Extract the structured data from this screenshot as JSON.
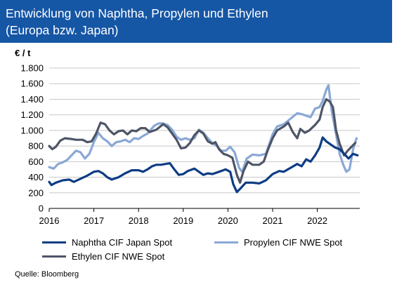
{
  "header": {
    "title_line1": "Entwicklung von Naphtha, Propylen und Ethylen",
    "title_line2": "(Europa bzw. Japan)",
    "background_color": "#1556a5"
  },
  "unit_label": "€ / t",
  "source": "Quelle: Bloomberg",
  "chart_data": {
    "type": "line",
    "title": "Entwicklung von Naphtha, Propylen und Ethylen (Europa bzw. Japan)",
    "ylabel": "€ / t",
    "xlabel": "",
    "ylim": [
      0,
      1800
    ],
    "yticks": [
      0,
      200,
      400,
      600,
      800,
      1000,
      1200,
      1400,
      1600,
      1800
    ],
    "ytick_labels": [
      "0",
      "200",
      "400",
      "600",
      "800",
      "1.000",
      "1.200",
      "1.400",
      "1.600",
      "1.800"
    ],
    "xlim": [
      2016.0,
      2022.95
    ],
    "xticks": [
      2016,
      2017,
      2018,
      2019,
      2020,
      2021,
      2022
    ],
    "xtick_labels": [
      "2016",
      "2017",
      "2018",
      "2019",
      "2020",
      "2021",
      "2022"
    ],
    "grid": "horizontal",
    "legend_position": "bottom",
    "series": [
      {
        "name": "Naphtha CIF Japan Spot",
        "color": "#0d3c84",
        "points": [
          [
            2016.0,
            340
          ],
          [
            2016.05,
            300
          ],
          [
            2016.15,
            330
          ],
          [
            2016.3,
            360
          ],
          [
            2016.45,
            370
          ],
          [
            2016.55,
            340
          ],
          [
            2016.7,
            380
          ],
          [
            2016.85,
            420
          ],
          [
            2017.0,
            470
          ],
          [
            2017.1,
            480
          ],
          [
            2017.2,
            450
          ],
          [
            2017.3,
            400
          ],
          [
            2017.4,
            370
          ],
          [
            2017.55,
            400
          ],
          [
            2017.7,
            450
          ],
          [
            2017.85,
            490
          ],
          [
            2018.0,
            490
          ],
          [
            2018.1,
            470
          ],
          [
            2018.2,
            500
          ],
          [
            2018.3,
            540
          ],
          [
            2018.4,
            560
          ],
          [
            2018.5,
            560
          ],
          [
            2018.6,
            570
          ],
          [
            2018.7,
            580
          ],
          [
            2018.8,
            500
          ],
          [
            2018.9,
            430
          ],
          [
            2019.0,
            440
          ],
          [
            2019.1,
            480
          ],
          [
            2019.25,
            510
          ],
          [
            2019.35,
            470
          ],
          [
            2019.45,
            430
          ],
          [
            2019.55,
            450
          ],
          [
            2019.65,
            440
          ],
          [
            2019.8,
            470
          ],
          [
            2019.95,
            500
          ],
          [
            2020.05,
            470
          ],
          [
            2020.12,
            310
          ],
          [
            2020.2,
            210
          ],
          [
            2020.27,
            250
          ],
          [
            2020.4,
            330
          ],
          [
            2020.55,
            330
          ],
          [
            2020.7,
            320
          ],
          [
            2020.85,
            360
          ],
          [
            2021.0,
            440
          ],
          [
            2021.15,
            480
          ],
          [
            2021.25,
            470
          ],
          [
            2021.4,
            520
          ],
          [
            2021.55,
            570
          ],
          [
            2021.65,
            540
          ],
          [
            2021.75,
            630
          ],
          [
            2021.85,
            600
          ],
          [
            2021.95,
            680
          ],
          [
            2022.05,
            780
          ],
          [
            2022.12,
            910
          ],
          [
            2022.2,
            860
          ],
          [
            2022.3,
            820
          ],
          [
            2022.4,
            780
          ],
          [
            2022.5,
            760
          ],
          [
            2022.6,
            700
          ],
          [
            2022.7,
            640
          ],
          [
            2022.8,
            700
          ],
          [
            2022.9,
            680
          ]
        ]
      },
      {
        "name": "Propylen CIF NWE Spot",
        "color": "#8aa8d6",
        "points": [
          [
            2016.0,
            530
          ],
          [
            2016.1,
            510
          ],
          [
            2016.2,
            570
          ],
          [
            2016.3,
            590
          ],
          [
            2016.4,
            620
          ],
          [
            2016.5,
            680
          ],
          [
            2016.6,
            740
          ],
          [
            2016.7,
            720
          ],
          [
            2016.8,
            640
          ],
          [
            2016.9,
            700
          ],
          [
            2017.0,
            850
          ],
          [
            2017.1,
            970
          ],
          [
            2017.2,
            900
          ],
          [
            2017.3,
            860
          ],
          [
            2017.4,
            800
          ],
          [
            2017.5,
            850
          ],
          [
            2017.6,
            860
          ],
          [
            2017.7,
            880
          ],
          [
            2017.8,
            850
          ],
          [
            2017.9,
            900
          ],
          [
            2018.0,
            890
          ],
          [
            2018.1,
            930
          ],
          [
            2018.2,
            960
          ],
          [
            2018.35,
            1060
          ],
          [
            2018.45,
            1090
          ],
          [
            2018.55,
            1090
          ],
          [
            2018.65,
            1070
          ],
          [
            2018.75,
            1010
          ],
          [
            2018.85,
            920
          ],
          [
            2018.95,
            880
          ],
          [
            2019.05,
            900
          ],
          [
            2019.15,
            880
          ],
          [
            2019.25,
            900
          ],
          [
            2019.35,
            1010
          ],
          [
            2019.45,
            970
          ],
          [
            2019.55,
            900
          ],
          [
            2019.65,
            840
          ],
          [
            2019.75,
            800
          ],
          [
            2019.85,
            740
          ],
          [
            2019.95,
            740
          ],
          [
            2020.05,
            790
          ],
          [
            2020.15,
            720
          ],
          [
            2020.25,
            520
          ],
          [
            2020.32,
            470
          ],
          [
            2020.42,
            640
          ],
          [
            2020.55,
            690
          ],
          [
            2020.7,
            680
          ],
          [
            2020.85,
            700
          ],
          [
            2021.0,
            950
          ],
          [
            2021.1,
            1050
          ],
          [
            2021.25,
            1080
          ],
          [
            2021.4,
            1150
          ],
          [
            2021.55,
            1220
          ],
          [
            2021.65,
            1210
          ],
          [
            2021.75,
            1190
          ],
          [
            2021.85,
            1170
          ],
          [
            2021.95,
            1280
          ],
          [
            2022.05,
            1300
          ],
          [
            2022.12,
            1380
          ],
          [
            2022.2,
            1520
          ],
          [
            2022.25,
            1580
          ],
          [
            2022.32,
            1260
          ],
          [
            2022.42,
            950
          ],
          [
            2022.5,
            700
          ],
          [
            2022.58,
            560
          ],
          [
            2022.65,
            470
          ],
          [
            2022.72,
            500
          ],
          [
            2022.8,
            760
          ],
          [
            2022.88,
            900
          ]
        ]
      },
      {
        "name": "Ethylen CIF NWE Spot",
        "color": "#4d5566",
        "points": [
          [
            2016.0,
            800
          ],
          [
            2016.07,
            760
          ],
          [
            2016.15,
            790
          ],
          [
            2016.25,
            870
          ],
          [
            2016.35,
            900
          ],
          [
            2016.5,
            890
          ],
          [
            2016.6,
            880
          ],
          [
            2016.75,
            880
          ],
          [
            2016.85,
            850
          ],
          [
            2016.95,
            860
          ],
          [
            2017.05,
            960
          ],
          [
            2017.15,
            1100
          ],
          [
            2017.25,
            1080
          ],
          [
            2017.35,
            1000
          ],
          [
            2017.45,
            950
          ],
          [
            2017.55,
            990
          ],
          [
            2017.65,
            1000
          ],
          [
            2017.75,
            950
          ],
          [
            2017.85,
            1000
          ],
          [
            2017.95,
            990
          ],
          [
            2018.05,
            1030
          ],
          [
            2018.15,
            1030
          ],
          [
            2018.25,
            980
          ],
          [
            2018.4,
            1010
          ],
          [
            2018.55,
            1080
          ],
          [
            2018.65,
            1040
          ],
          [
            2018.75,
            960
          ],
          [
            2018.85,
            880
          ],
          [
            2018.95,
            770
          ],
          [
            2019.05,
            780
          ],
          [
            2019.15,
            840
          ],
          [
            2019.25,
            940
          ],
          [
            2019.35,
            1000
          ],
          [
            2019.45,
            960
          ],
          [
            2019.55,
            860
          ],
          [
            2019.65,
            830
          ],
          [
            2019.72,
            850
          ],
          [
            2019.8,
            760
          ],
          [
            2019.9,
            700
          ],
          [
            2020.0,
            680
          ],
          [
            2020.1,
            650
          ],
          [
            2020.2,
            430
          ],
          [
            2020.27,
            330
          ],
          [
            2020.35,
            480
          ],
          [
            2020.45,
            600
          ],
          [
            2020.55,
            560
          ],
          [
            2020.7,
            560
          ],
          [
            2020.8,
            600
          ],
          [
            2020.9,
            760
          ],
          [
            2021.0,
            900
          ],
          [
            2021.1,
            1000
          ],
          [
            2021.25,
            1050
          ],
          [
            2021.35,
            1100
          ],
          [
            2021.45,
            980
          ],
          [
            2021.55,
            900
          ],
          [
            2021.62,
            1020
          ],
          [
            2021.72,
            970
          ],
          [
            2021.82,
            1000
          ],
          [
            2021.95,
            1070
          ],
          [
            2022.05,
            1140
          ],
          [
            2022.12,
            1300
          ],
          [
            2022.2,
            1400
          ],
          [
            2022.28,
            1370
          ],
          [
            2022.35,
            1300
          ],
          [
            2022.42,
            1000
          ],
          [
            2022.5,
            830
          ],
          [
            2022.6,
            680
          ],
          [
            2022.68,
            740
          ],
          [
            2022.78,
            800
          ],
          [
            2022.85,
            840
          ]
        ]
      }
    ]
  }
}
